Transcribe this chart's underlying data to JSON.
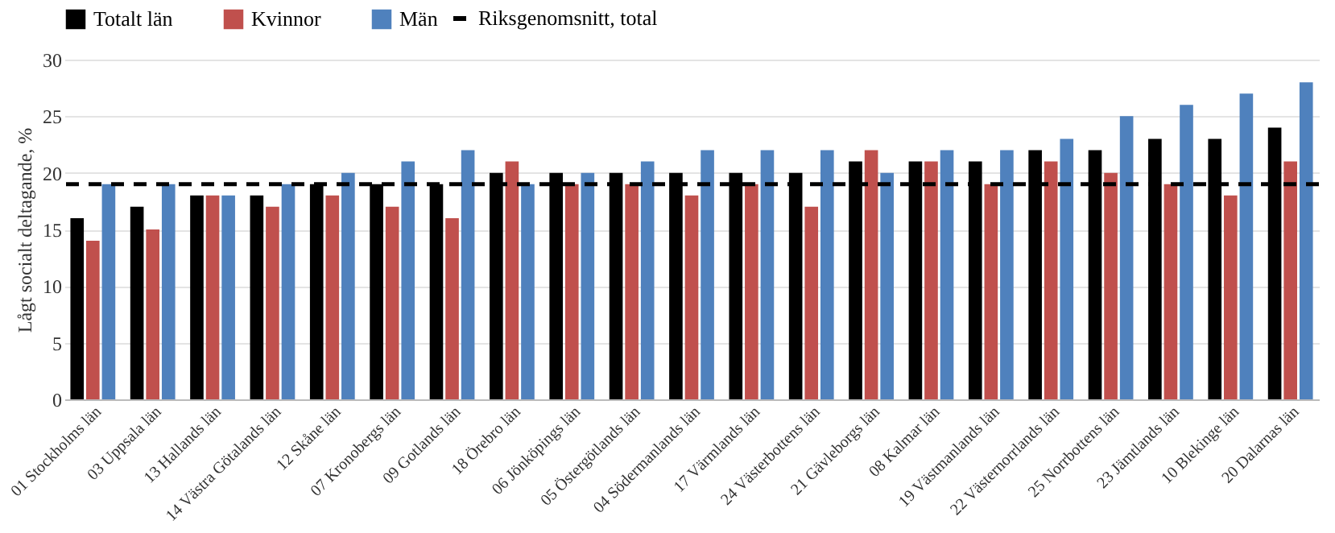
{
  "chart_data": {
    "type": "bar",
    "ylabel": "Lågt socialt deltagande, %",
    "categories": [
      "01 Stockholms län",
      "03 Uppsala län",
      "13 Hallands län",
      "14 Västra Götalands län",
      "12 Skåne län",
      "07 Kronobergs län",
      "09 Gotlands län",
      "18 Örebro län",
      "06 Jönköpings län",
      "05 Östergötlands län",
      "04 Södermanlands län",
      "17 Värmlands län",
      "24 Västerbottens län",
      "21 Gävleborgs län",
      "08 Kalmar län",
      "19 Västmanlands län",
      "22 Västernorrlands län",
      "25 Norrbottens län",
      "23 Jämtlands län",
      "10 Blekinge län",
      "20 Dalarnas län"
    ],
    "series": [
      {
        "name": "Totalt län",
        "color": "#000000",
        "values": [
          16,
          17,
          18,
          18,
          19,
          19,
          19,
          20,
          20,
          20,
          20,
          20,
          20,
          21,
          21,
          21,
          22,
          22,
          23,
          23,
          24
        ]
      },
      {
        "name": "Kvinnor",
        "color": "#c0504d",
        "values": [
          14,
          15,
          18,
          17,
          18,
          17,
          16,
          21,
          19,
          19,
          18,
          19,
          17,
          22,
          21,
          19,
          21,
          20,
          19,
          18,
          21
        ]
      },
      {
        "name": "Män",
        "color": "#4f81bd",
        "values": [
          19,
          19,
          18,
          19,
          20,
          21,
          22,
          19,
          20,
          21,
          22,
          22,
          22,
          20,
          22,
          22,
          23,
          25,
          26,
          27,
          28
        ]
      }
    ],
    "ylim": [
      0,
      30
    ],
    "yticks": [
      0,
      5,
      10,
      15,
      20,
      25,
      30
    ],
    "grid": "y",
    "legend": "top",
    "ref_lines": [
      {
        "axis": "y",
        "value": 19,
        "label": "Riksgenomsnitt, total",
        "color": "#000000",
        "line_style": "dashed"
      }
    ]
  }
}
